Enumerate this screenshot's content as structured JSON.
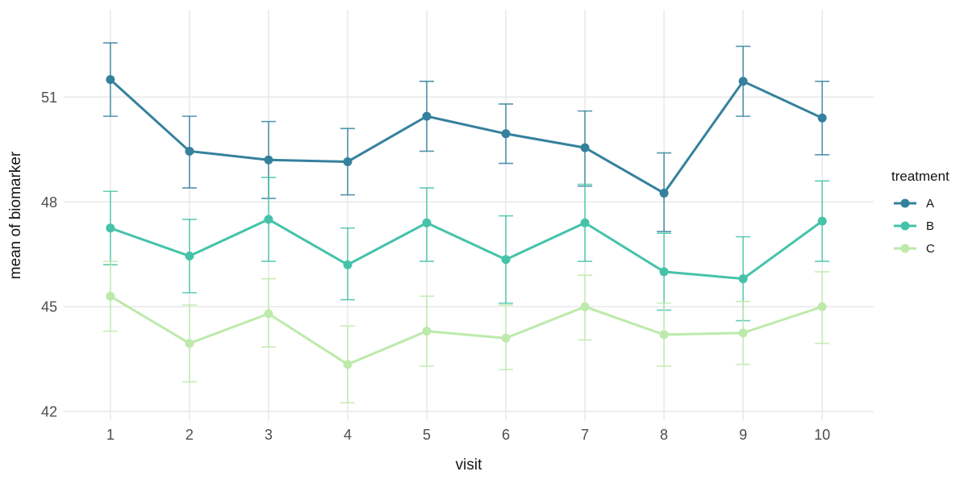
{
  "chart_data": {
    "type": "line",
    "title": "",
    "xlabel": "visit",
    "ylabel": "mean of biomarker",
    "legend_title": "treatment",
    "legend_position": "right",
    "grid": true,
    "x": [
      1,
      2,
      3,
      4,
      5,
      6,
      7,
      8,
      9,
      10
    ],
    "xticks": [
      "1",
      "2",
      "3",
      "4",
      "5",
      "6",
      "7",
      "8",
      "9",
      "10"
    ],
    "yticks": [
      42,
      45,
      48,
      51
    ],
    "xlim": [
      0.41,
      10.65
    ],
    "ylim": [
      41.75,
      53.5
    ],
    "grid_color": "#e8e8e8",
    "tick_label_color": "#4d4d4d",
    "series": [
      {
        "name": "A",
        "color": "#35819d",
        "values": [
          51.5,
          49.45,
          49.2,
          49.15,
          50.45,
          49.95,
          49.55,
          48.25,
          51.45,
          50.4
        ],
        "error_low": [
          50.45,
          48.4,
          48.1,
          48.2,
          49.45,
          49.1,
          48.45,
          47.15,
          50.45,
          49.35
        ],
        "error_high": [
          52.55,
          50.45,
          50.3,
          50.1,
          51.45,
          50.8,
          50.6,
          49.4,
          52.45,
          51.45
        ]
      },
      {
        "name": "B",
        "color": "#45c3a9",
        "values": [
          47.25,
          46.45,
          47.5,
          46.2,
          47.4,
          46.35,
          47.4,
          46.0,
          45.8,
          47.45
        ],
        "error_low": [
          46.2,
          45.4,
          46.3,
          45.2,
          46.3,
          45.1,
          46.3,
          44.9,
          44.6,
          46.3
        ],
        "error_high": [
          48.3,
          47.5,
          48.7,
          47.25,
          48.4,
          47.6,
          48.5,
          47.1,
          47.0,
          48.6
        ]
      },
      {
        "name": "C",
        "color": "#bdeaab",
        "values": [
          45.3,
          43.95,
          44.8,
          43.35,
          44.3,
          44.1,
          45.0,
          44.2,
          44.25,
          45.0
        ],
        "error_low": [
          44.3,
          42.85,
          43.85,
          42.25,
          43.3,
          43.2,
          44.05,
          43.3,
          43.35,
          43.95
        ],
        "error_high": [
          46.3,
          45.05,
          45.8,
          44.45,
          45.3,
          45.05,
          45.9,
          45.1,
          45.15,
          46.0
        ]
      }
    ]
  }
}
